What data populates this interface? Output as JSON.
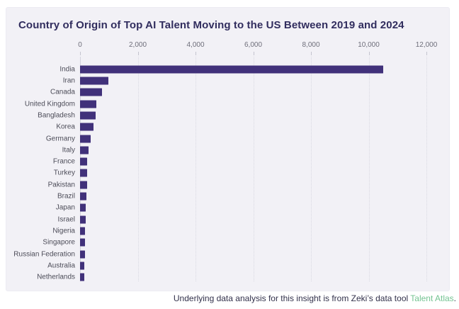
{
  "title": "Country of Origin of Top AI Talent Moving to the US Between 2019 and 2024",
  "colors": {
    "bar": "#41317a",
    "title_text": "#312d5e",
    "panel_background": "#f2f1f6",
    "page_background": "#ffffff",
    "axis_text": "#6e6e7a",
    "label_text": "#4c4c58",
    "footer_text": "#32314b",
    "link_green": "#74c392",
    "gridline": "#d9d9e2"
  },
  "footer": {
    "prefix": "Underlying data analysis for this insight is from Zeki’s data tool ",
    "link": "Talent Atlas",
    "suffix": "."
  },
  "chart_data": {
    "type": "bar",
    "orientation": "horizontal",
    "title": "Country of Origin of Top AI Talent Moving to the US Between 2019 and 2024",
    "xlabel": "",
    "ylabel": "",
    "xlim": [
      0,
      12000
    ],
    "x_ticks": [
      0,
      2000,
      4000,
      6000,
      8000,
      10000,
      12000
    ],
    "x_tick_labels": [
      "0",
      "2,000",
      "4,000",
      "6,000",
      "8,000",
      "10,000",
      "12,000"
    ],
    "grid": "vertical-dotted",
    "legend": "none",
    "categories": [
      "India",
      "Iran",
      "Canada",
      "United Kingdom",
      "Bangladesh",
      "Korea",
      "Germany",
      "Italy",
      "France",
      "Turkey",
      "Pakistan",
      "Brazil",
      "Japan",
      "Israel",
      "Nigeria",
      "Singapore",
      "Russian Federation",
      "Australia",
      "Netherlands"
    ],
    "values": [
      10500,
      990,
      760,
      565,
      540,
      470,
      360,
      290,
      255,
      250,
      235,
      215,
      200,
      190,
      180,
      165,
      160,
      155,
      145
    ]
  }
}
